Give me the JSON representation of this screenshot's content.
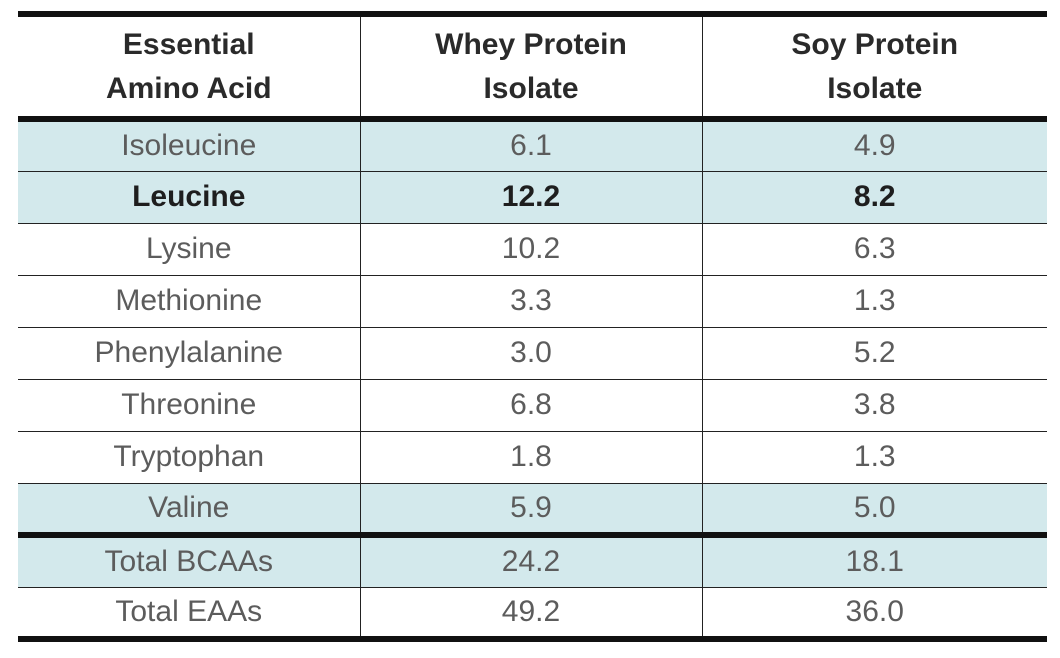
{
  "table": {
    "headers": [
      {
        "line1": "Essential",
        "line2": "Amino Acid"
      },
      {
        "line1": "Whey Protein",
        "line2": "Isolate"
      },
      {
        "line1": "Soy Protein",
        "line2": "Isolate"
      }
    ],
    "rows": [
      {
        "amino_acid": "Isoleucine",
        "whey": "6.1",
        "soy": "4.9"
      },
      {
        "amino_acid": "Leucine",
        "whey": "12.2",
        "soy": "8.2"
      },
      {
        "amino_acid": "Lysine",
        "whey": "10.2",
        "soy": "6.3"
      },
      {
        "amino_acid": "Methionine",
        "whey": "3.3",
        "soy": "1.3"
      },
      {
        "amino_acid": "Phenylalanine",
        "whey": "3.0",
        "soy": "5.2"
      },
      {
        "amino_acid": "Threonine",
        "whey": "6.8",
        "soy": "3.8"
      },
      {
        "amino_acid": "Tryptophan",
        "whey": "1.8",
        "soy": "1.3"
      },
      {
        "amino_acid": "Valine",
        "whey": "5.9",
        "soy": "5.0"
      }
    ],
    "totals": [
      {
        "label": "Total BCAAs",
        "whey": "24.2",
        "soy": "18.1"
      },
      {
        "label": "Total EAAs",
        "whey": "49.2",
        "soy": "36.0"
      }
    ],
    "highlight_color": "#d3e9ec",
    "highlighted_rows": [
      "Isoleucine",
      "Leucine",
      "Valine",
      "Total BCAAs"
    ],
    "bold_rows": [
      "Leucine"
    ]
  }
}
